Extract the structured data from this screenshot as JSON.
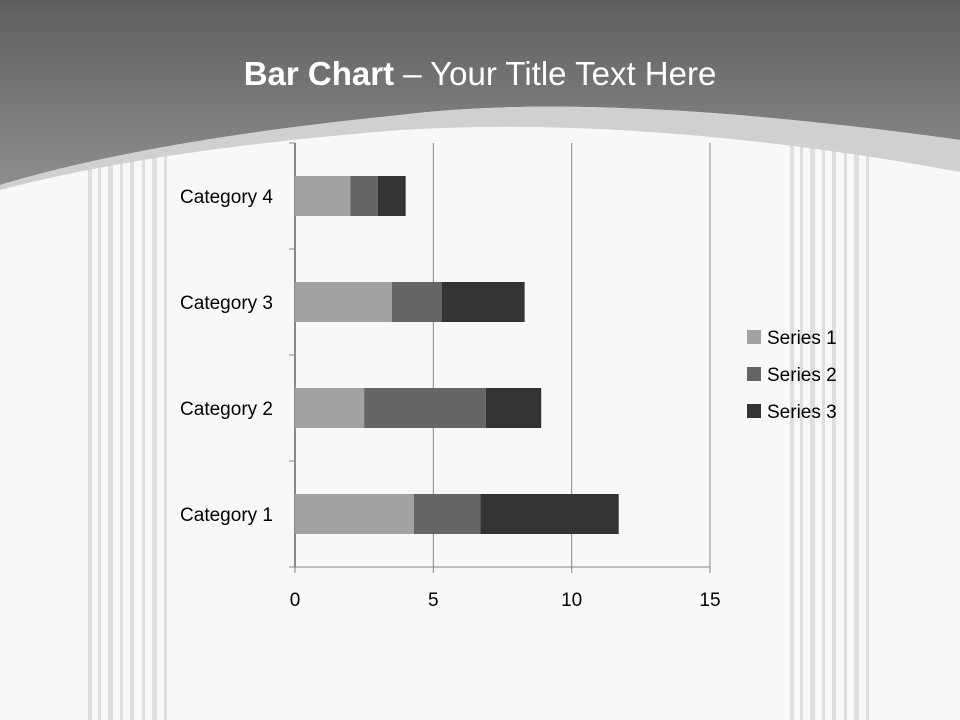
{
  "title": {
    "bold": "Bar Chart",
    "rest": " – Your Title Text Here"
  },
  "colors": {
    "series": [
      "#a2a2a2",
      "#656565",
      "#333333"
    ],
    "header": "#7a7a7a"
  },
  "chart_data": {
    "type": "bar",
    "orientation": "horizontal",
    "stacked": true,
    "categories": [
      "Category 1",
      "Category 2",
      "Category 3",
      "Category 4"
    ],
    "series": [
      {
        "name": "Series 1",
        "values": [
          4.3,
          2.5,
          3.5,
          2
        ]
      },
      {
        "name": "Series 2",
        "values": [
          2.4,
          4.4,
          1.8,
          1
        ]
      },
      {
        "name": "Series 3",
        "values": [
          5,
          2,
          3,
          1
        ]
      }
    ],
    "xlim": [
      0,
      15
    ],
    "xticks": [
      "0",
      "5",
      "10",
      "15"
    ],
    "grid": true,
    "legend": "right"
  }
}
